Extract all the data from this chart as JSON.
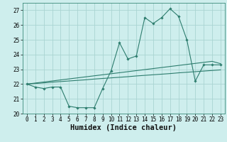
{
  "title": "",
  "xlabel": "Humidex (Indice chaleur)",
  "ylabel": "",
  "background_color": "#ceeeed",
  "grid_color": "#aad4d2",
  "line_color": "#2d7d6e",
  "x_values": [
    0,
    1,
    2,
    3,
    4,
    5,
    6,
    7,
    8,
    9,
    10,
    11,
    12,
    13,
    14,
    15,
    16,
    17,
    18,
    19,
    20,
    21,
    22,
    23
  ],
  "series1": [
    22.0,
    21.8,
    21.7,
    21.8,
    21.8,
    20.5,
    20.4,
    20.4,
    20.4,
    21.7,
    22.9,
    24.8,
    23.7,
    23.9,
    26.5,
    26.1,
    26.5,
    27.1,
    26.6,
    25.0,
    22.2,
    23.3,
    23.3,
    23.3
  ],
  "series2_slope": [
    22.0,
    22.04,
    22.08,
    22.13,
    22.17,
    22.21,
    22.25,
    22.29,
    22.34,
    22.38,
    22.42,
    22.46,
    22.5,
    22.55,
    22.59,
    22.63,
    22.67,
    22.71,
    22.76,
    22.8,
    22.84,
    22.88,
    22.92,
    22.96
  ],
  "series3_slope": [
    22.0,
    22.07,
    22.14,
    22.21,
    22.28,
    22.35,
    22.42,
    22.49,
    22.56,
    22.63,
    22.7,
    22.77,
    22.84,
    22.91,
    22.98,
    23.05,
    23.12,
    23.19,
    23.26,
    23.33,
    23.4,
    23.47,
    23.54,
    23.38
  ],
  "ylim": [
    20,
    27.5
  ],
  "xlim": [
    -0.5,
    23.5
  ],
  "yticks": [
    20,
    21,
    22,
    23,
    24,
    25,
    26,
    27
  ],
  "xticks": [
    0,
    1,
    2,
    3,
    4,
    5,
    6,
    7,
    8,
    9,
    10,
    11,
    12,
    13,
    14,
    15,
    16,
    17,
    18,
    19,
    20,
    21,
    22,
    23
  ],
  "tick_fontsize": 5.5,
  "xlabel_fontsize": 7.5
}
